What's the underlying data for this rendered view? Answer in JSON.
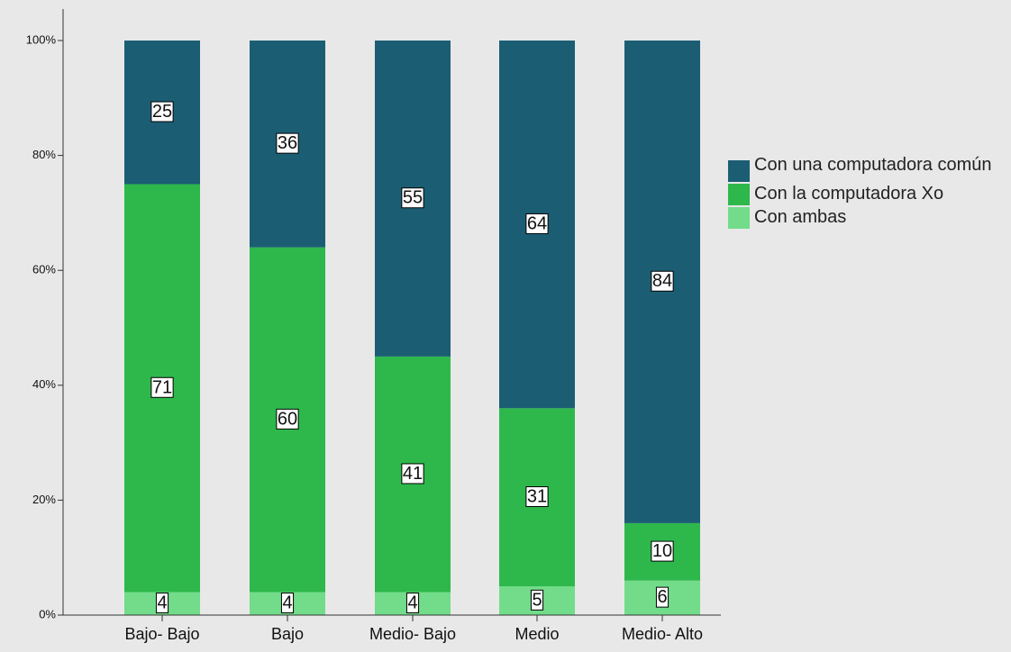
{
  "chart_data": {
    "type": "bar",
    "stacked": true,
    "categories": [
      "Bajo- Bajo",
      "Bajo",
      "Medio- Bajo",
      "Medio",
      "Medio- Alto"
    ],
    "series": [
      {
        "name": "Con una computadora común",
        "color": "#1b5e74",
        "values": [
          25,
          36,
          55,
          64,
          84
        ]
      },
      {
        "name": "Con la computadora Xo",
        "color": "#2eb84c",
        "values": [
          71,
          60,
          41,
          31,
          10
        ]
      },
      {
        "name": "Con ambas",
        "color": "#72dc8a",
        "values": [
          4,
          4,
          4,
          5,
          6
        ]
      }
    ],
    "ylim": [
      0,
      100
    ],
    "yticks": [
      {
        "value": 0,
        "label": "0%"
      },
      {
        "value": 20,
        "label": "20%"
      },
      {
        "value": 40,
        "label": "40%"
      },
      {
        "value": 60,
        "label": "60%"
      },
      {
        "value": 80,
        "label": "80%"
      },
      {
        "value": 100,
        "label": "100%"
      }
    ],
    "legend": "right"
  }
}
